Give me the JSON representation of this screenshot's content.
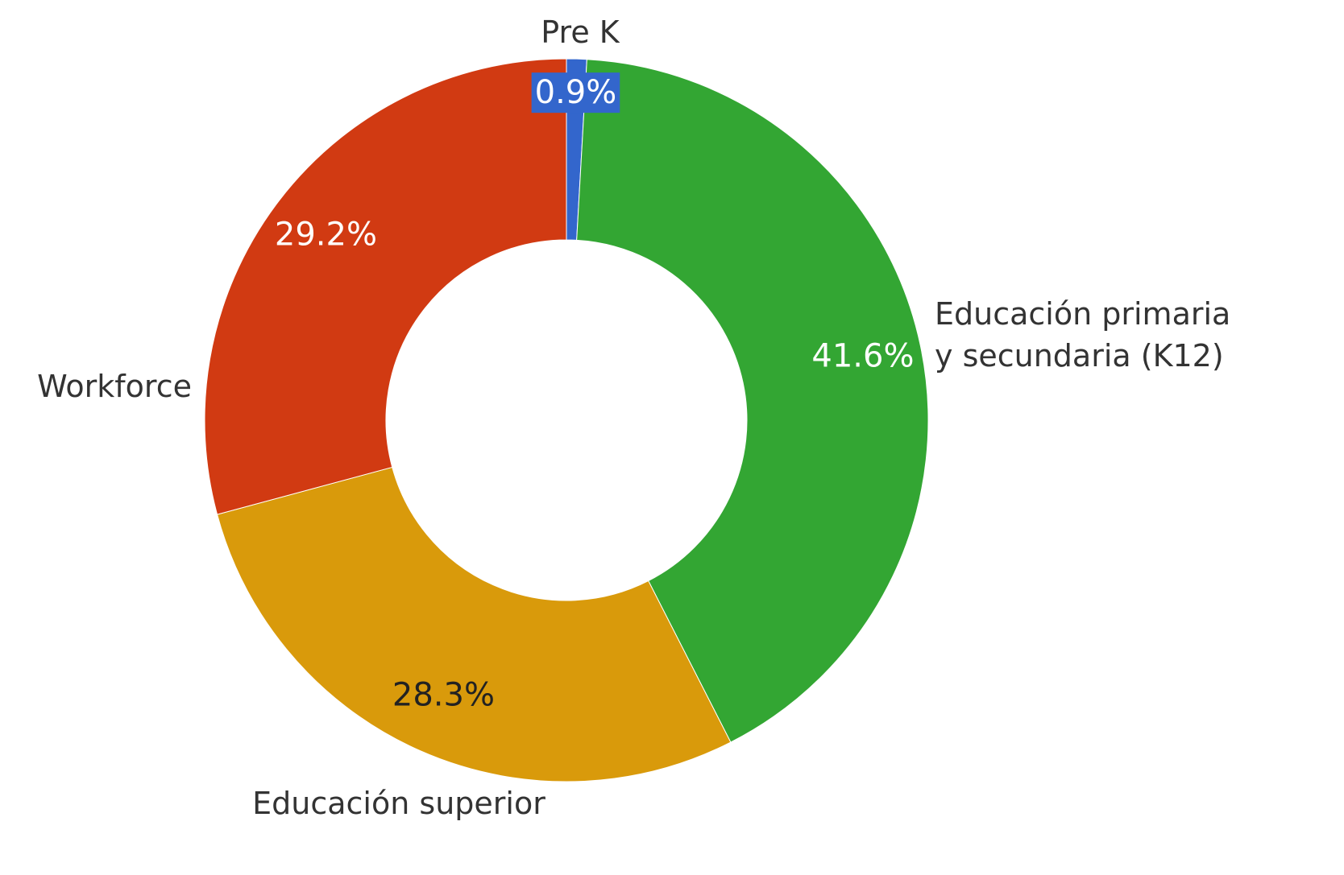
{
  "chart_data": {
    "type": "pie",
    "categories": [
      "Pre K",
      "Educación primaria y secundaria (K12)",
      "Educación superior",
      "Workforce"
    ],
    "values": [
      0.9,
      41.6,
      28.3,
      29.2
    ],
    "value_labels": [
      "0.9%",
      "41.6%",
      "28.3%",
      "29.2%"
    ],
    "colors": [
      "#3366cc",
      "#33a633",
      "#d99a0b",
      "#d13a12"
    ]
  }
}
